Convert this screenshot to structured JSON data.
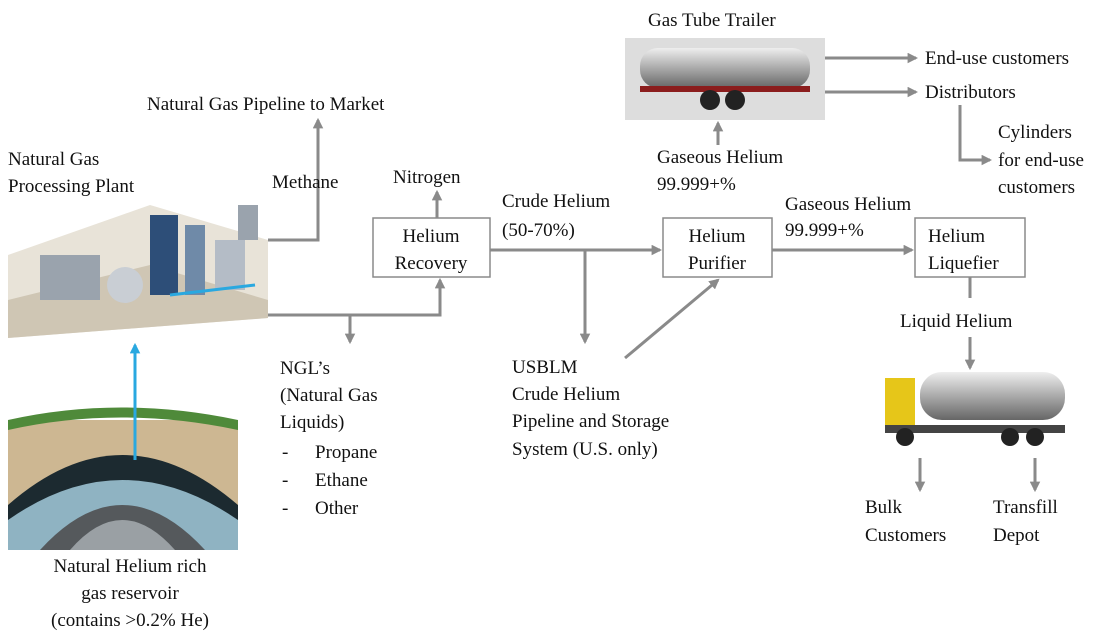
{
  "plant": {
    "lines": [
      "Natural Gas",
      "Processing Plant"
    ]
  },
  "reservoir": {
    "lines": [
      "Natural Helium rich",
      "gas reservoir",
      "(contains >0.2% He)"
    ]
  },
  "pipeline": {
    "label": "Natural Gas Pipeline to Market"
  },
  "methane": {
    "label": "Methane"
  },
  "nitrogen": {
    "label": "Nitrogen"
  },
  "helium_recovery": {
    "lines": [
      "Helium",
      "Recovery"
    ]
  },
  "crude_helium": {
    "lines": [
      "Crude Helium",
      "(50-70%)"
    ]
  },
  "helium_purifier": {
    "lines": [
      "Helium",
      "Purifier"
    ]
  },
  "gaseous_helium_trailer": {
    "lines": [
      "Gaseous Helium",
      "99.999+%"
    ]
  },
  "gaseous_helium_liquefier": {
    "lines": [
      "Gaseous Helium",
      "99.999+%"
    ]
  },
  "helium_liquefier": {
    "lines": [
      "Helium",
      "Liquefier"
    ]
  },
  "gas_tube_trailer": {
    "label": "Gas Tube Trailer"
  },
  "end_use_customers": {
    "label": "End-use customers"
  },
  "distributors": {
    "label": "Distributors"
  },
  "cylinders": {
    "lines": [
      "Cylinders",
      "for end-use",
      "customers"
    ]
  },
  "liquid_helium": {
    "label": "Liquid Helium"
  },
  "ngl": {
    "lines": [
      "NGL’s",
      "(Natural Gas",
      "Liquids)"
    ],
    "bullet": "-",
    "items": [
      "Propane",
      "Ethane",
      "Other"
    ]
  },
  "usblm": {
    "lines": [
      "USBLM",
      "Crude Helium",
      "Pipeline and Storage",
      "System (U.S. only)"
    ]
  },
  "bulk_customers": {
    "lines": [
      "Bulk",
      "Customers"
    ]
  },
  "transfill_depot": {
    "lines": [
      "Transfill",
      "Depot"
    ]
  }
}
